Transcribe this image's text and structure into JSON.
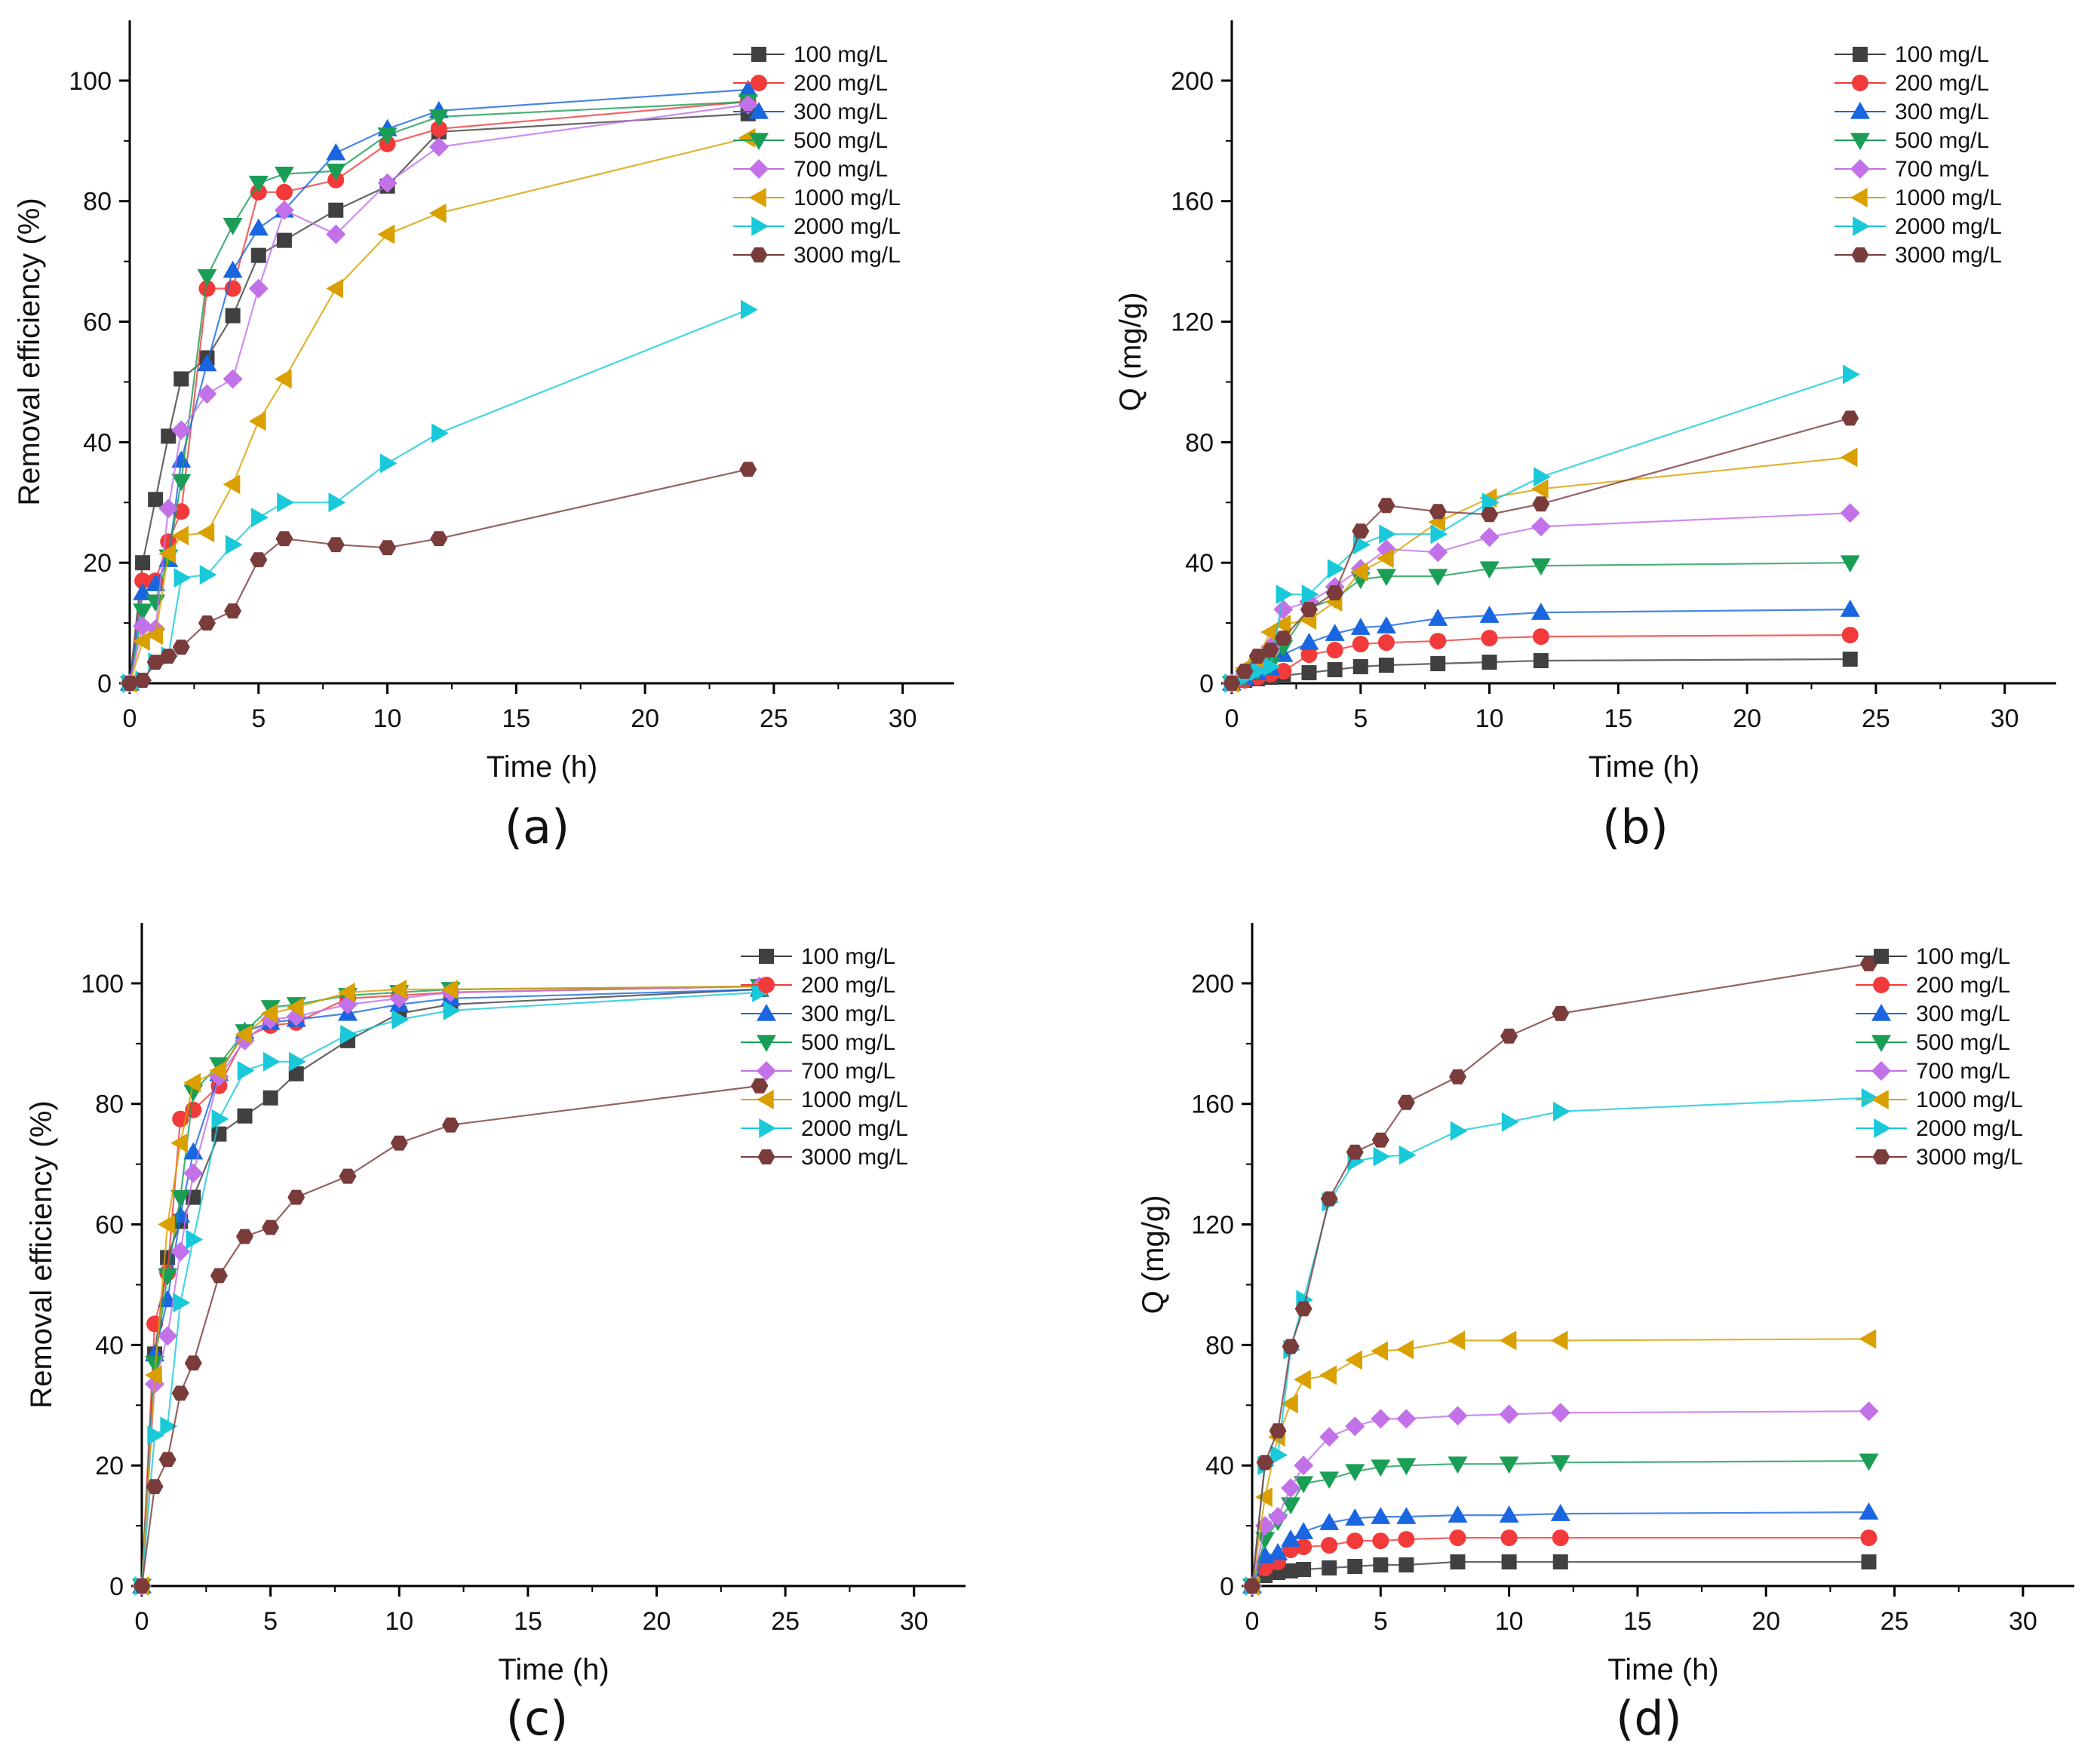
{
  "colors": [
    "#404040",
    "#f23a3a",
    "#1a66e0",
    "#1a9e56",
    "#c271e8",
    "#d9a000",
    "#19c9d9",
    "#7a3b3b"
  ],
  "markers": [
    "square",
    "circle",
    "triangle-up",
    "triangle-down",
    "diamond",
    "triangle-left",
    "triangle-right",
    "hexagon"
  ],
  "chart_data": [
    {
      "panel": "(a)",
      "type": "line",
      "xlabel": "Time (h)",
      "ylabel": "Removal efficiency (%)",
      "xlim": [
        0,
        32
      ],
      "ylim": [
        0,
        110
      ],
      "xticks": [
        0,
        5,
        10,
        15,
        20,
        25,
        30
      ],
      "yticks": [
        0,
        20,
        40,
        60,
        80,
        100
      ],
      "legend": "top-right",
      "x": [
        0,
        0.5,
        1,
        1.5,
        2,
        3,
        4,
        5,
        6,
        8,
        10,
        12,
        24
      ],
      "series": [
        {
          "name": "100 mg/L",
          "values": [
            0,
            20,
            30.5,
            41,
            50.5,
            54,
            61,
            71,
            73.5,
            78.5,
            82.5,
            91.5,
            94.5
          ]
        },
        {
          "name": "200 mg/L",
          "values": [
            0,
            17,
            17,
            23.5,
            28.5,
            65.5,
            65.5,
            81.5,
            81.5,
            83.5,
            89.5,
            92,
            96.5
          ]
        },
        {
          "name": "300 mg/L",
          "values": [
            0,
            15,
            16.5,
            20.5,
            37,
            53,
            68.5,
            75.5,
            78.5,
            88,
            92,
            95,
            98.5
          ]
        },
        {
          "name": "500 mg/L",
          "values": [
            0,
            12,
            13.5,
            21,
            33.5,
            67.5,
            76,
            83,
            84.5,
            85,
            91,
            94,
            96.5
          ]
        },
        {
          "name": "700 mg/L",
          "values": [
            0,
            9.5,
            9,
            29,
            42,
            48,
            50.5,
            65.5,
            78.5,
            74.5,
            83,
            89,
            96
          ]
        },
        {
          "name": "1000 mg/L",
          "values": [
            0,
            7,
            8,
            21.5,
            24.5,
            25,
            33,
            43.5,
            50.5,
            65.5,
            74.5,
            78,
            90.5
          ]
        },
        {
          "name": "2000 mg/L",
          "values": [
            0,
            0.5,
            3.5,
            4.5,
            17.5,
            18,
            23,
            27.5,
            30,
            30,
            36.5,
            41.5,
            62
          ]
        },
        {
          "name": "3000 mg/L",
          "values": [
            0,
            0.5,
            3.5,
            4.5,
            6,
            10,
            12,
            20.5,
            24,
            23,
            22.5,
            24,
            35.5
          ]
        }
      ]
    },
    {
      "panel": "(b)",
      "type": "line",
      "xlabel": "Time (h)",
      "ylabel": "Q (mg/g)",
      "xlim": [
        0,
        32
      ],
      "ylim": [
        0,
        220
      ],
      "xticks": [
        0,
        5,
        10,
        15,
        20,
        25,
        30
      ],
      "yticks": [
        0,
        40,
        80,
        120,
        160,
        200
      ],
      "legend": "top-right",
      "x": [
        0,
        0.5,
        1,
        1.5,
        2,
        3,
        4,
        5,
        6,
        8,
        10,
        12,
        24
      ],
      "series": [
        {
          "name": "100 mg/L",
          "values": [
            0,
            1,
            1.5,
            2,
            2.5,
            3.5,
            4.5,
            5.5,
            6,
            6.5,
            7,
            7.5,
            8
          ]
        },
        {
          "name": "200 mg/L",
          "values": [
            0,
            1,
            2,
            3,
            4,
            9.5,
            11,
            13,
            13.5,
            14,
            15,
            15.5,
            16
          ]
        },
        {
          "name": "300 mg/L",
          "values": [
            0,
            2,
            3.5,
            5,
            9.5,
            13.5,
            16.5,
            18.5,
            19,
            21.5,
            22.5,
            23.5,
            24.5
          ]
        },
        {
          "name": "500 mg/L",
          "values": [
            0,
            2,
            4,
            6,
            12,
            25,
            28,
            34.5,
            35.5,
            35.5,
            38,
            39,
            40
          ]
        },
        {
          "name": "700 mg/L",
          "values": [
            0,
            3,
            5,
            12,
            24.5,
            27,
            32,
            38,
            44.5,
            43.5,
            48.5,
            52,
            56.5
          ]
        },
        {
          "name": "1000 mg/L",
          "values": [
            0,
            5,
            8,
            17,
            19.5,
            21,
            27,
            37,
            41.5,
            53.5,
            61.5,
            64.5,
            75
          ]
        },
        {
          "name": "2000 mg/L",
          "values": [
            0,
            2,
            4,
            5.5,
            29.5,
            29.5,
            38,
            46,
            49.5,
            49.5,
            60,
            68.5,
            102.5
          ]
        },
        {
          "name": "3000 mg/L",
          "values": [
            0,
            4,
            9,
            11,
            15,
            24.5,
            30,
            50.5,
            59,
            57,
            56,
            59.5,
            88
          ]
        }
      ]
    },
    {
      "panel": "(c)",
      "type": "line",
      "xlabel": "Time (h)",
      "ylabel": "Removal efficiency (%)",
      "xlim": [
        0,
        32
      ],
      "ylim": [
        0,
        110
      ],
      "xticks": [
        0,
        5,
        10,
        15,
        20,
        25,
        30
      ],
      "yticks": [
        0,
        20,
        40,
        60,
        80,
        100
      ],
      "legend": "top-right",
      "x": [
        0,
        0.5,
        1,
        1.5,
        2,
        3,
        4,
        5,
        6,
        8,
        10,
        12,
        24
      ],
      "series": [
        {
          "name": "100 mg/L",
          "values": [
            0,
            38.5,
            54.5,
            60.5,
            64.5,
            75,
            78,
            81,
            85,
            90.5,
            95,
            96.5,
            99
          ]
        },
        {
          "name": "200 mg/L",
          "values": [
            0,
            43.5,
            52,
            77.5,
            79,
            83,
            91,
            93,
            93.5,
            97.5,
            98,
            98.5,
            99.5
          ]
        },
        {
          "name": "300 mg/L",
          "values": [
            0,
            38.5,
            47.5,
            61.5,
            72,
            85,
            92,
            93.5,
            94,
            95,
            96.5,
            97.5,
            99
          ]
        },
        {
          "name": "500 mg/L",
          "values": [
            0,
            37,
            51.5,
            64.5,
            82,
            86.5,
            92,
            96,
            96.5,
            98,
            98.5,
            99,
            99.5
          ]
        },
        {
          "name": "700 mg/L",
          "values": [
            0,
            33.5,
            41.5,
            55.5,
            68.5,
            84.5,
            90.5,
            94,
            94.5,
            96.5,
            97.5,
            98.5,
            99.5
          ]
        },
        {
          "name": "1000 mg/L",
          "values": [
            0,
            35,
            60,
            73.5,
            83.5,
            85.5,
            91.5,
            95,
            96,
            98.5,
            99,
            99,
            99.5
          ]
        },
        {
          "name": "2000 mg/L",
          "values": [
            0,
            25,
            26.5,
            47,
            57.5,
            77.5,
            85.5,
            87,
            87,
            91.5,
            94,
            95.5,
            98.5
          ]
        },
        {
          "name": "3000 mg/L",
          "values": [
            0,
            16.5,
            21,
            32,
            37,
            51.5,
            58,
            59.5,
            64.5,
            68,
            73.5,
            76.5,
            83
          ]
        }
      ]
    },
    {
      "panel": "(d)",
      "type": "line",
      "xlabel": "Time (h)",
      "ylabel": "Q (mg/g)",
      "xlim": [
        0,
        32
      ],
      "ylim": [
        0,
        220
      ],
      "xticks": [
        0,
        5,
        10,
        15,
        20,
        25,
        30
      ],
      "yticks": [
        0,
        40,
        80,
        120,
        160,
        200
      ],
      "legend": "top-right",
      "x": [
        0,
        0.5,
        1,
        1.5,
        2,
        3,
        4,
        5,
        6,
        8,
        10,
        12,
        24
      ],
      "series": [
        {
          "name": "100 mg/L",
          "values": [
            0,
            3.5,
            4.5,
            5,
            5.5,
            6,
            6.5,
            7,
            7,
            8,
            8,
            8,
            8
          ]
        },
        {
          "name": "200 mg/L",
          "values": [
            0,
            6,
            8,
            12,
            13,
            13.5,
            15,
            15,
            15.5,
            16,
            16,
            16,
            16
          ]
        },
        {
          "name": "300 mg/L",
          "values": [
            0,
            10,
            11,
            15.5,
            18,
            21,
            22.5,
            23,
            23,
            23.5,
            23.5,
            24,
            24.5
          ]
        },
        {
          "name": "500 mg/L",
          "values": [
            0,
            15.5,
            21.5,
            27,
            34,
            35.5,
            38,
            39.5,
            40,
            40.5,
            40.5,
            41,
            41.5
          ]
        },
        {
          "name": "700 mg/L",
          "values": [
            0,
            20,
            23,
            32.5,
            40,
            49.5,
            53,
            55.5,
            55.5,
            56.5,
            57,
            57.5,
            58
          ]
        },
        {
          "name": "1000 mg/L",
          "values": [
            0,
            29.5,
            49.5,
            60.5,
            68.5,
            70,
            75,
            78,
            78.5,
            81.5,
            81.5,
            81.5,
            82
          ]
        },
        {
          "name": "2000 mg/L",
          "values": [
            0,
            40,
            43.5,
            78.5,
            95,
            127.5,
            141,
            142.5,
            143,
            151,
            154,
            157.5,
            162
          ]
        },
        {
          "name": "3000 mg/L",
          "values": [
            0,
            41,
            51.5,
            79.5,
            92,
            128.5,
            144,
            148,
            160.5,
            169,
            182.5,
            190,
            206.5
          ]
        }
      ]
    }
  ]
}
